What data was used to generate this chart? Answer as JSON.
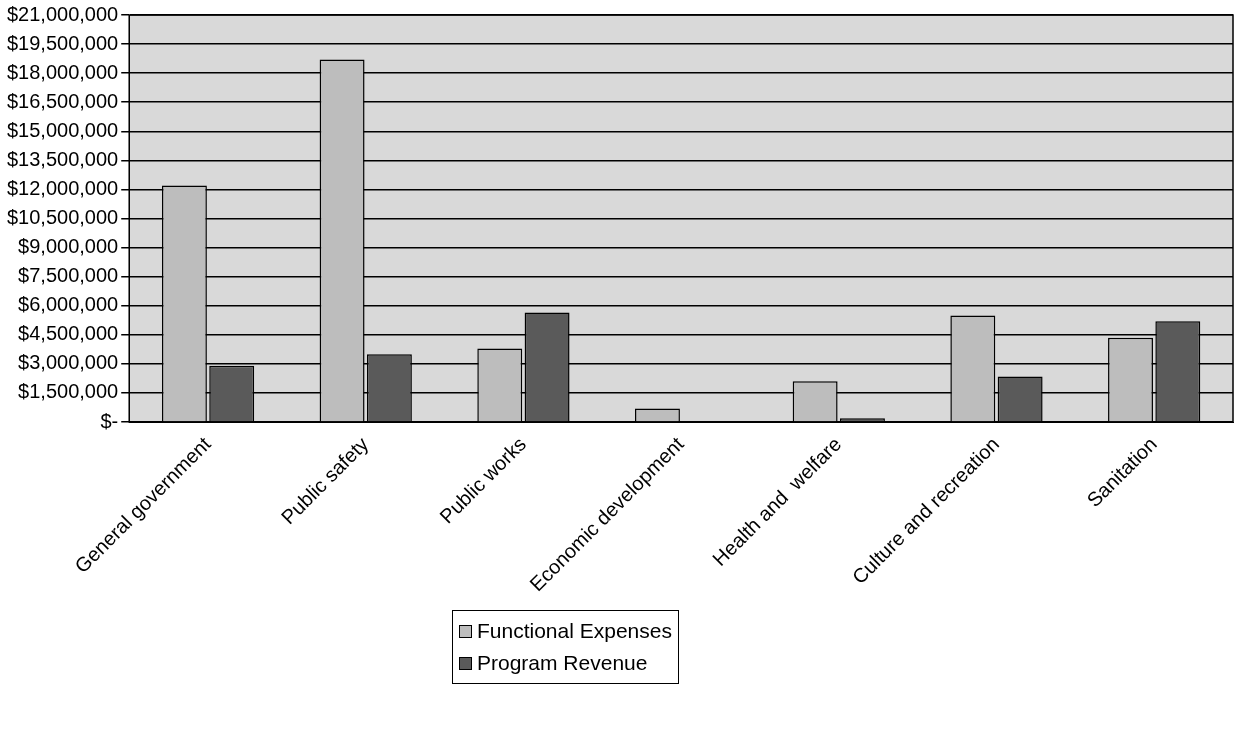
{
  "chart_data": {
    "type": "bar",
    "categories": [
      "General government",
      "Public safety",
      "Public works",
      "Economic development",
      "Health and  welfare",
      "Culture and recreation",
      "Sanitation"
    ],
    "series": [
      {
        "name": "Functional Expenses",
        "color": "#bdbdbd",
        "values": [
          12200000,
          18700000,
          3800000,
          700000,
          2100000,
          5500000,
          4350000
        ]
      },
      {
        "name": "Program Revenue",
        "color": "#5a5a5a",
        "values": [
          2900000,
          3500000,
          5650000,
          null,
          200000,
          2350000,
          5200000
        ]
      }
    ],
    "ylim": [
      0,
      21000000
    ],
    "yticks": [
      {
        "value": 0,
        "label": "$-"
      },
      {
        "value": 1500000,
        "label": "$1,500,000"
      },
      {
        "value": 3000000,
        "label": "$3,000,000"
      },
      {
        "value": 4500000,
        "label": "$4,500,000"
      },
      {
        "value": 6000000,
        "label": "$6,000,000"
      },
      {
        "value": 7500000,
        "label": "$7,500,000"
      },
      {
        "value": 9000000,
        "label": "$9,000,000"
      },
      {
        "value": 10500000,
        "label": "$10,500,000"
      },
      {
        "value": 12000000,
        "label": "$12,000,000"
      },
      {
        "value": 13500000,
        "label": "$13,500,000"
      },
      {
        "value": 15000000,
        "label": "$15,000,000"
      },
      {
        "value": 16500000,
        "label": "$16,500,000"
      },
      {
        "value": 18000000,
        "label": "$18,000,000"
      },
      {
        "value": 19500000,
        "label": "$19,500,000"
      },
      {
        "value": 21000000,
        "label": "$21,000,000"
      }
    ],
    "grid": "y",
    "legend": "bottom"
  }
}
